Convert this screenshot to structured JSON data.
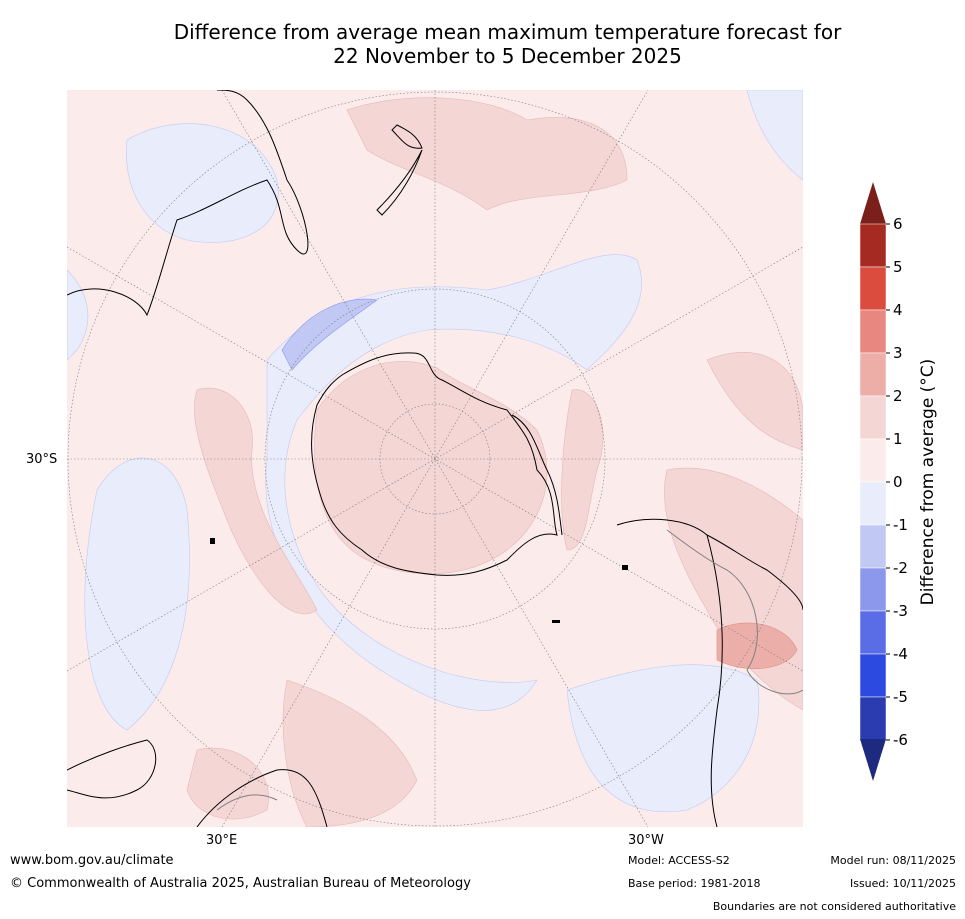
{
  "title": {
    "line1": "Difference from average mean maximum temperature forecast for",
    "line2": "22 November to 5 December 2025"
  },
  "map": {
    "projection": "south-polar-stereographic",
    "lat_label": "30°S",
    "lon_labels": [
      "30°E",
      "30°W"
    ],
    "colors": {
      "ocean_base": "#fbeceb",
      "anom_0_1": "#fbeceb",
      "anom_1_2": "#f4d6d5",
      "anom_2_3": "#ecaea9",
      "anom_m1_0": "#e8ecfb",
      "anom_m2_m1": "#c1c8f3",
      "coastline": "#000000",
      "border": "#808080"
    }
  },
  "colorbar": {
    "label": "Difference from average (°C)",
    "ticks": [
      "6",
      "5",
      "4",
      "3",
      "2",
      "1",
      "0",
      "-1",
      "-2",
      "-3",
      "-4",
      "-5",
      "-6"
    ],
    "colors": [
      "#a52a22",
      "#db4b3e",
      "#e8877f",
      "#edaea8",
      "#f4d6d5",
      "#fbeceb",
      "#e8ecfb",
      "#c1c8f3",
      "#8b98ec",
      "#5a6ce6",
      "#2c4ae0",
      "#2a3cb0"
    ],
    "over_color": "#7a1f1a",
    "under_color": "#1e2a80"
  },
  "footer": {
    "website": "www.bom.gov.au/climate",
    "copyright": "© Commonwealth of Australia 2025, Australian Bureau of Meteorology",
    "model": "Model: ACCESS-S2",
    "base_period": "Base period: 1981-2018",
    "model_run": "Model run: 08/11/2025",
    "issued": "Issued: 10/11/2025",
    "disclaimer": "Boundaries are not considered authoritative"
  }
}
